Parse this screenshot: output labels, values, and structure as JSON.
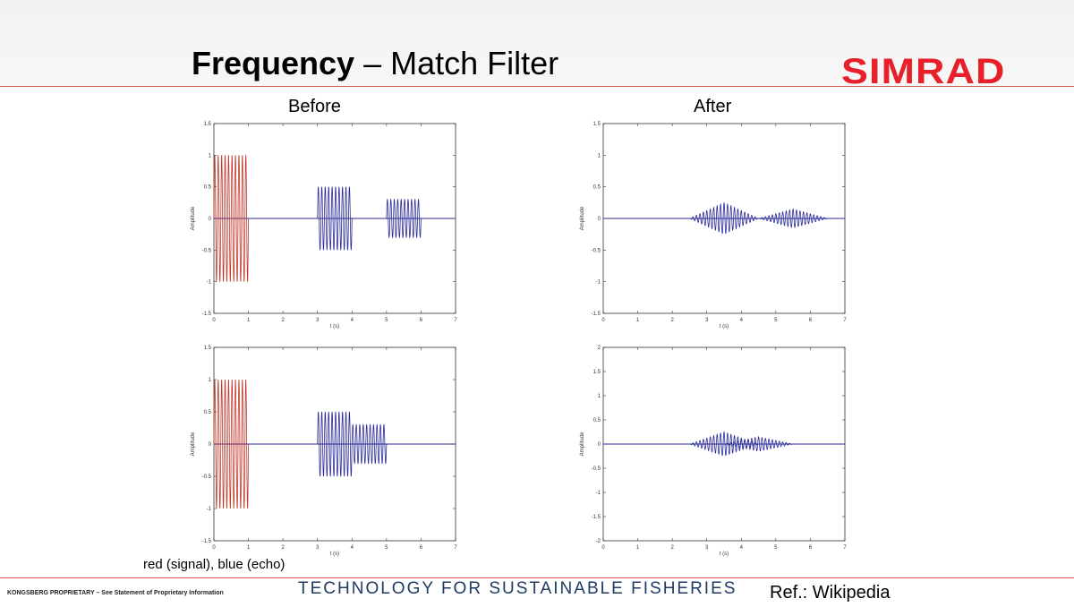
{
  "slide": {
    "title_bold": "Frequency",
    "title_rest": " – Match Filter",
    "logo": "SIMRAD",
    "label_before": "Before",
    "label_after": "After",
    "caption": "red (signal), blue (echo)",
    "footer_left": "KONGSBERG PROPRIETARY – See Statement of Proprietary Information",
    "footer_mid": "TECHNOLOGY FOR SUSTAINABLE FISHERIES",
    "ref": "Ref.: Wikipedia",
    "accent_color": "#e8202a",
    "rule_color": "#d9534f"
  },
  "chart_data": [
    {
      "id": "before-top",
      "type": "line",
      "xlabel": "t (s)",
      "ylabel": "Amplitude",
      "xlim": [
        0,
        7
      ],
      "ylim": [
        -1.5,
        1.5
      ],
      "xticks": [
        0,
        1,
        2,
        3,
        4,
        5,
        6,
        7
      ],
      "yticks": [
        -1.5,
        -1,
        -0.5,
        0,
        0.5,
        1,
        1.5
      ],
      "bursts": [
        {
          "color": "#c0392b",
          "t_start": 0,
          "t_end": 1,
          "amplitude": 1,
          "frequency": 10
        },
        {
          "color": "#2b2b9a",
          "t_start": 3,
          "t_end": 4,
          "amplitude": 0.5,
          "frequency": 10
        },
        {
          "color": "#2b2b9a",
          "t_start": 5,
          "t_end": 6,
          "amplitude": 0.3,
          "frequency": 10
        }
      ],
      "baseline": {
        "color": "#2b2b9a",
        "value": 0
      }
    },
    {
      "id": "after-top",
      "type": "line",
      "xlabel": "t (s)",
      "ylabel": "Amplitude",
      "xlim": [
        0,
        7
      ],
      "ylim": [
        -1.5,
        1.5
      ],
      "xticks": [
        0,
        1,
        2,
        3,
        4,
        5,
        6,
        7
      ],
      "yticks": [
        -1.5,
        -1,
        -0.5,
        0,
        0.5,
        1,
        1.5
      ],
      "peaks": [
        {
          "color": "#2b2b9a",
          "center": 3.5,
          "halfwidth": 1,
          "amplitude": 0.25,
          "frequency": 10
        },
        {
          "color": "#2b2b9a",
          "center": 5.5,
          "halfwidth": 1,
          "amplitude": 0.15,
          "frequency": 10
        }
      ],
      "baseline": {
        "color": "#2b2b9a",
        "value": 0
      }
    },
    {
      "id": "before-bottom",
      "type": "line",
      "xlabel": "t (s)",
      "ylabel": "Amplitude",
      "xlim": [
        0,
        7
      ],
      "ylim": [
        -1.5,
        1.5
      ],
      "xticks": [
        0,
        1,
        2,
        3,
        4,
        5,
        6,
        7
      ],
      "yticks": [
        -1.5,
        -1,
        -0.5,
        0,
        0.5,
        1,
        1.5
      ],
      "bursts": [
        {
          "color": "#c0392b",
          "t_start": 0,
          "t_end": 1,
          "amplitude": 1,
          "frequency": 10
        },
        {
          "color": "#2b2b9a",
          "t_start": 3,
          "t_end": 4,
          "amplitude": 0.5,
          "frequency": 10
        },
        {
          "color": "#2b2b9a",
          "t_start": 4,
          "t_end": 5,
          "amplitude": 0.3,
          "frequency": 10
        }
      ],
      "baseline": {
        "color": "#2b2b9a",
        "value": 0
      }
    },
    {
      "id": "after-bottom",
      "type": "line",
      "xlabel": "t (s)",
      "ylabel": "Amplitude",
      "xlim": [
        0,
        7
      ],
      "ylim": [
        -2,
        2
      ],
      "xticks": [
        0,
        1,
        2,
        3,
        4,
        5,
        6,
        7
      ],
      "yticks": [
        -2,
        -1.5,
        -1,
        -0.5,
        0,
        0.5,
        1,
        1.5,
        2
      ],
      "peaks": [
        {
          "color": "#2b2b9a",
          "center": 3.5,
          "halfwidth": 1,
          "amplitude": 0.25,
          "frequency": 10
        },
        {
          "color": "#2b2b9a",
          "center": 4.5,
          "halfwidth": 1,
          "amplitude": 0.15,
          "frequency": 10
        }
      ],
      "baseline": {
        "color": "#2b2b9a",
        "value": 0
      }
    }
  ]
}
